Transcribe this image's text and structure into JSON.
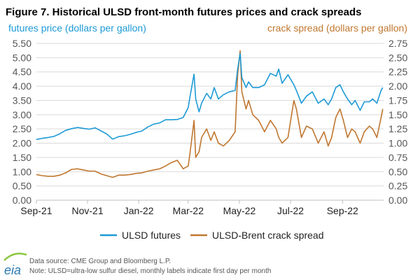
{
  "colors": {
    "futures": "#1d9ad6",
    "crack": "#c0772f",
    "grid": "#d9d9d9",
    "tick_text": "#555555"
  },
  "logo": {
    "text": "eia",
    "icon": "eia-logo-icon"
  },
  "footer": {
    "source": "Data source: CME Group and Bloomberg L.P.",
    "note": "Note: ULSD=ultra-low sulfur diesel, monthly labels indicate first day per month"
  },
  "chart_data": {
    "type": "line",
    "title": "Figure 7. Historical ULSD front-month futures prices and crack spreads",
    "ylabel_left": "futures price (dollars per gallon)",
    "ylabel_right": "crack spread (dollars per gallon)",
    "xlabel": "",
    "x_ticks": [
      "Sep-21",
      "Nov-21",
      "Jan-22",
      "Mar-22",
      "May-22",
      "Jul-22",
      "Sep-22"
    ],
    "x_range": [
      "2021-09-01",
      "2022-10-20"
    ],
    "ylim_left": [
      0,
      5.5
    ],
    "ylim_right": [
      0,
      2.75
    ],
    "y_ticks_left": [
      "0.00",
      "0.50",
      "1.00",
      "1.50",
      "2.00",
      "2.50",
      "3.00",
      "3.50",
      "4.00",
      "4.50",
      "5.00",
      "5.50"
    ],
    "y_ticks_right": [
      "0.00",
      "0.25",
      "0.50",
      "0.75",
      "1.00",
      "1.25",
      "1.50",
      "1.75",
      "2.00",
      "2.25",
      "2.50",
      "2.75"
    ],
    "grid": true,
    "legend_position": "bottom",
    "series": [
      {
        "name": "ULSD futures",
        "axis": "left",
        "points": [
          [
            "2021-09-01",
            2.13
          ],
          [
            "2021-09-08",
            2.17
          ],
          [
            "2021-09-15",
            2.2
          ],
          [
            "2021-09-22",
            2.24
          ],
          [
            "2021-09-29",
            2.33
          ],
          [
            "2021-10-06",
            2.45
          ],
          [
            "2021-10-13",
            2.51
          ],
          [
            "2021-10-20",
            2.55
          ],
          [
            "2021-10-27",
            2.52
          ],
          [
            "2021-11-03",
            2.49
          ],
          [
            "2021-11-10",
            2.54
          ],
          [
            "2021-11-17",
            2.43
          ],
          [
            "2021-11-24",
            2.32
          ],
          [
            "2021-12-01",
            2.14
          ],
          [
            "2021-12-08",
            2.23
          ],
          [
            "2021-12-15",
            2.26
          ],
          [
            "2021-12-22",
            2.31
          ],
          [
            "2021-12-29",
            2.38
          ],
          [
            "2022-01-05",
            2.43
          ],
          [
            "2022-01-12",
            2.57
          ],
          [
            "2022-01-19",
            2.67
          ],
          [
            "2022-01-26",
            2.71
          ],
          [
            "2022-02-02",
            2.82
          ],
          [
            "2022-02-09",
            2.82
          ],
          [
            "2022-02-16",
            2.83
          ],
          [
            "2022-02-23",
            2.9
          ],
          [
            "2022-03-01",
            3.25
          ],
          [
            "2022-03-03",
            3.6
          ],
          [
            "2022-03-08",
            4.42
          ],
          [
            "2022-03-10",
            3.55
          ],
          [
            "2022-03-14",
            3.1
          ],
          [
            "2022-03-17",
            3.4
          ],
          [
            "2022-03-23",
            3.75
          ],
          [
            "2022-03-28",
            3.55
          ],
          [
            "2022-04-01",
            3.95
          ],
          [
            "2022-04-06",
            3.55
          ],
          [
            "2022-04-12",
            3.7
          ],
          [
            "2022-04-19",
            3.8
          ],
          [
            "2022-04-26",
            3.85
          ],
          [
            "2022-04-29",
            4.6
          ],
          [
            "2022-05-02",
            5.15
          ],
          [
            "2022-05-04",
            4.3
          ],
          [
            "2022-05-09",
            3.95
          ],
          [
            "2022-05-12",
            4.15
          ],
          [
            "2022-05-17",
            3.95
          ],
          [
            "2022-05-24",
            3.95
          ],
          [
            "2022-05-31",
            4.05
          ],
          [
            "2022-06-07",
            4.45
          ],
          [
            "2022-06-14",
            4.35
          ],
          [
            "2022-06-17",
            4.6
          ],
          [
            "2022-06-21",
            4.1
          ],
          [
            "2022-06-28",
            4.4
          ],
          [
            "2022-07-05",
            4.05
          ],
          [
            "2022-07-08",
            3.85
          ],
          [
            "2022-07-14",
            3.4
          ],
          [
            "2022-07-20",
            3.65
          ],
          [
            "2022-07-27",
            3.8
          ],
          [
            "2022-08-03",
            3.4
          ],
          [
            "2022-08-10",
            3.55
          ],
          [
            "2022-08-15",
            3.35
          ],
          [
            "2022-08-19",
            3.55
          ],
          [
            "2022-08-24",
            3.95
          ],
          [
            "2022-08-29",
            4.05
          ],
          [
            "2022-09-02",
            3.8
          ],
          [
            "2022-09-07",
            3.55
          ],
          [
            "2022-09-12",
            3.35
          ],
          [
            "2022-09-16",
            3.5
          ],
          [
            "2022-09-22",
            3.15
          ],
          [
            "2022-09-27",
            3.45
          ],
          [
            "2022-10-03",
            3.45
          ],
          [
            "2022-10-07",
            3.55
          ],
          [
            "2022-10-12",
            3.4
          ],
          [
            "2022-10-17",
            3.85
          ],
          [
            "2022-10-19",
            3.95
          ]
        ]
      },
      {
        "name": "ULSD-Brent crack spread",
        "axis": "right",
        "points": [
          [
            "2021-09-01",
            0.45
          ],
          [
            "2021-09-08",
            0.43
          ],
          [
            "2021-09-15",
            0.42
          ],
          [
            "2021-09-22",
            0.42
          ],
          [
            "2021-09-29",
            0.44
          ],
          [
            "2021-10-06",
            0.48
          ],
          [
            "2021-10-13",
            0.54
          ],
          [
            "2021-10-20",
            0.55
          ],
          [
            "2021-10-27",
            0.53
          ],
          [
            "2021-11-03",
            0.51
          ],
          [
            "2021-11-10",
            0.51
          ],
          [
            "2021-11-17",
            0.46
          ],
          [
            "2021-11-24",
            0.43
          ],
          [
            "2021-12-01",
            0.4
          ],
          [
            "2021-12-08",
            0.44
          ],
          [
            "2021-12-15",
            0.44
          ],
          [
            "2021-12-22",
            0.45
          ],
          [
            "2021-12-29",
            0.47
          ],
          [
            "2022-01-05",
            0.48
          ],
          [
            "2022-01-12",
            0.51
          ],
          [
            "2022-01-19",
            0.53
          ],
          [
            "2022-01-26",
            0.55
          ],
          [
            "2022-02-02",
            0.6
          ],
          [
            "2022-02-09",
            0.66
          ],
          [
            "2022-02-16",
            0.7
          ],
          [
            "2022-02-23",
            0.55
          ],
          [
            "2022-03-01",
            0.6
          ],
          [
            "2022-03-03",
            0.8
          ],
          [
            "2022-03-08",
            1.4
          ],
          [
            "2022-03-10",
            0.75
          ],
          [
            "2022-03-14",
            0.85
          ],
          [
            "2022-03-17",
            1.1
          ],
          [
            "2022-03-23",
            1.25
          ],
          [
            "2022-03-28",
            1.05
          ],
          [
            "2022-04-01",
            1.2
          ],
          [
            "2022-04-06",
            1.0
          ],
          [
            "2022-04-12",
            0.95
          ],
          [
            "2022-04-19",
            1.05
          ],
          [
            "2022-04-26",
            1.2
          ],
          [
            "2022-04-29",
            2.2
          ],
          [
            "2022-05-02",
            2.62
          ],
          [
            "2022-05-04",
            1.9
          ],
          [
            "2022-05-09",
            1.6
          ],
          [
            "2022-05-12",
            1.75
          ],
          [
            "2022-05-17",
            1.5
          ],
          [
            "2022-05-24",
            1.4
          ],
          [
            "2022-05-31",
            1.2
          ],
          [
            "2022-06-07",
            1.4
          ],
          [
            "2022-06-14",
            1.25
          ],
          [
            "2022-06-17",
            1.1
          ],
          [
            "2022-06-21",
            1.0
          ],
          [
            "2022-06-28",
            1.1
          ],
          [
            "2022-07-05",
            1.75
          ],
          [
            "2022-07-08",
            1.6
          ],
          [
            "2022-07-14",
            1.1
          ],
          [
            "2022-07-20",
            1.3
          ],
          [
            "2022-07-27",
            1.25
          ],
          [
            "2022-08-03",
            1.0
          ],
          [
            "2022-08-10",
            1.2
          ],
          [
            "2022-08-15",
            0.95
          ],
          [
            "2022-08-19",
            1.1
          ],
          [
            "2022-08-24",
            1.45
          ],
          [
            "2022-08-29",
            1.6
          ],
          [
            "2022-09-02",
            1.4
          ],
          [
            "2022-09-07",
            1.1
          ],
          [
            "2022-09-12",
            1.25
          ],
          [
            "2022-09-16",
            1.2
          ],
          [
            "2022-09-22",
            1.0
          ],
          [
            "2022-09-27",
            1.2
          ],
          [
            "2022-10-03",
            1.3
          ],
          [
            "2022-10-07",
            1.25
          ],
          [
            "2022-10-12",
            1.1
          ],
          [
            "2022-10-17",
            1.45
          ],
          [
            "2022-10-19",
            1.6
          ]
        ]
      }
    ]
  }
}
